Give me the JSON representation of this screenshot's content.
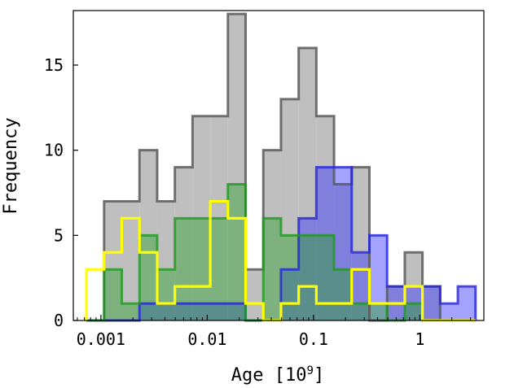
{
  "chart_data": {
    "type": "histogram",
    "title": "",
    "xlabel": "Age [10",
    "xlabel_exponent": "9",
    "xlabel_suffix": "]",
    "ylabel": "Frequency",
    "xscale": "log",
    "xlim": [
      0.00055,
      4.0
    ],
    "ylim": [
      0,
      18.2
    ],
    "x_ticks": [
      {
        "value": 0.001,
        "label": "0.001"
      },
      {
        "value": 0.01,
        "label": "0.01"
      },
      {
        "value": 0.1,
        "label": "0.1"
      },
      {
        "value": 1,
        "label": "1"
      }
    ],
    "y_ticks": [
      {
        "value": 0,
        "label": "0"
      },
      {
        "value": 5,
        "label": "5"
      },
      {
        "value": 10,
        "label": "10"
      },
      {
        "value": 15,
        "label": "15"
      }
    ],
    "bin_edges": [
      0.000731,
      0.001072,
      0.001572,
      0.002306,
      0.003383,
      0.004962,
      0.007277,
      0.010674,
      0.015657,
      0.022963,
      0.033681,
      0.049403,
      0.072463,
      0.106284,
      0.155891,
      0.22865,
      0.335371,
      0.491903,
      0.721496,
      1.058248,
      1.552172,
      2.27663,
      3.33923
    ],
    "series": [
      {
        "name": "all",
        "fill": "#bfbfbf",
        "fill_opacity": 1,
        "edge": "#5a5a5a",
        "values": [
          0,
          7,
          7,
          10,
          7,
          9,
          12,
          12,
          18,
          3,
          10,
          13,
          16,
          12,
          8,
          9,
          0,
          2,
          4,
          2,
          0,
          0
        ]
      },
      {
        "name": "blue",
        "fill": "#3333ff",
        "fill_opacity": 0.45,
        "edge": "#2424dd",
        "values": [
          0,
          0,
          0,
          1,
          1,
          1,
          1,
          1,
          1,
          0,
          0,
          3,
          6,
          9,
          9,
          4,
          5,
          2,
          2,
          2,
          1,
          2
        ]
      },
      {
        "name": "green",
        "fill": "#2ca02c",
        "fill_opacity": 0.45,
        "edge": "#1f9a1f",
        "values": [
          0,
          3,
          1,
          5,
          3,
          6,
          6,
          6,
          8,
          0,
          6,
          5,
          5,
          5,
          3,
          1,
          1,
          0,
          1,
          0,
          0,
          0
        ]
      },
      {
        "name": "yellow",
        "fill": "none",
        "fill_opacity": 0,
        "edge": "#ffff00",
        "values": [
          3,
          4,
          6,
          4,
          1,
          2,
          2,
          7,
          6,
          1,
          0,
          1,
          2,
          1,
          1,
          3,
          1,
          1,
          2,
          0,
          0,
          0
        ]
      }
    ]
  }
}
